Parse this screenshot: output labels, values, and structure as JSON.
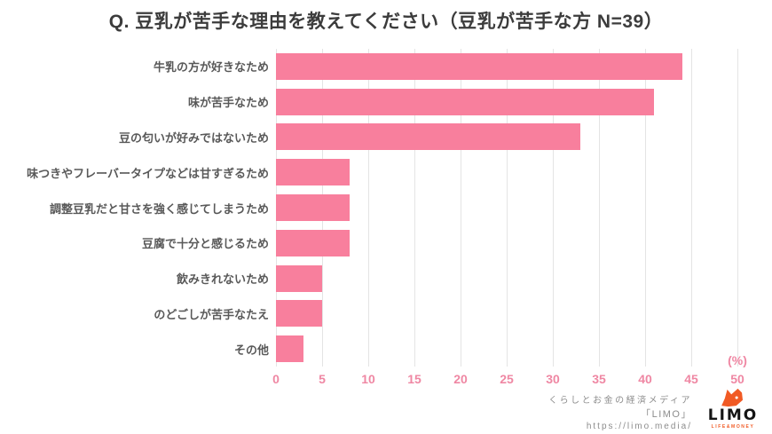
{
  "title": "Q. 豆乳が苦手な理由を教えてください（豆乳が苦手な方 N=39）",
  "chart_data": {
    "type": "bar",
    "orientation": "horizontal",
    "title": "Q. 豆乳が苦手な理由を教えてください（豆乳が苦手な方 N=39）",
    "categories": [
      "牛乳の方が好きなため",
      "味が苦手なため",
      "豆の匂いが好みではないため",
      "味つきやフレーバータイプなどは甘すぎるため",
      "調整豆乳だと甘さを強く感じてしまうため",
      "豆腐で十分と感じるため",
      "飲みきれないため",
      "のどごしが苦手なたえ",
      "その他"
    ],
    "values": [
      44,
      41,
      33,
      8,
      8,
      8,
      5,
      5,
      3
    ],
    "xlabel": "(%)",
    "ylabel": "",
    "xlim": [
      0,
      50
    ],
    "xticks": [
      0,
      5,
      10,
      15,
      20,
      25,
      30,
      35,
      40,
      45,
      50
    ],
    "unit_label": "(%)",
    "grid": true,
    "legend": false,
    "bar_color": "#f87f9d",
    "tick_color": "#ef87a3",
    "grid_color": "#e4e4e4",
    "label_color": "#595959",
    "title_color": "#3c3c3c"
  },
  "footer": {
    "tagline": "くらしとお金の経済メディア",
    "brand": "「LIMO」",
    "url": "https://limo.media/",
    "logo_text": "LIMO",
    "logo_subtext": "LIFE&MONEY",
    "logo_color": "#f15a24",
    "text_color": "#8c8c8c"
  }
}
